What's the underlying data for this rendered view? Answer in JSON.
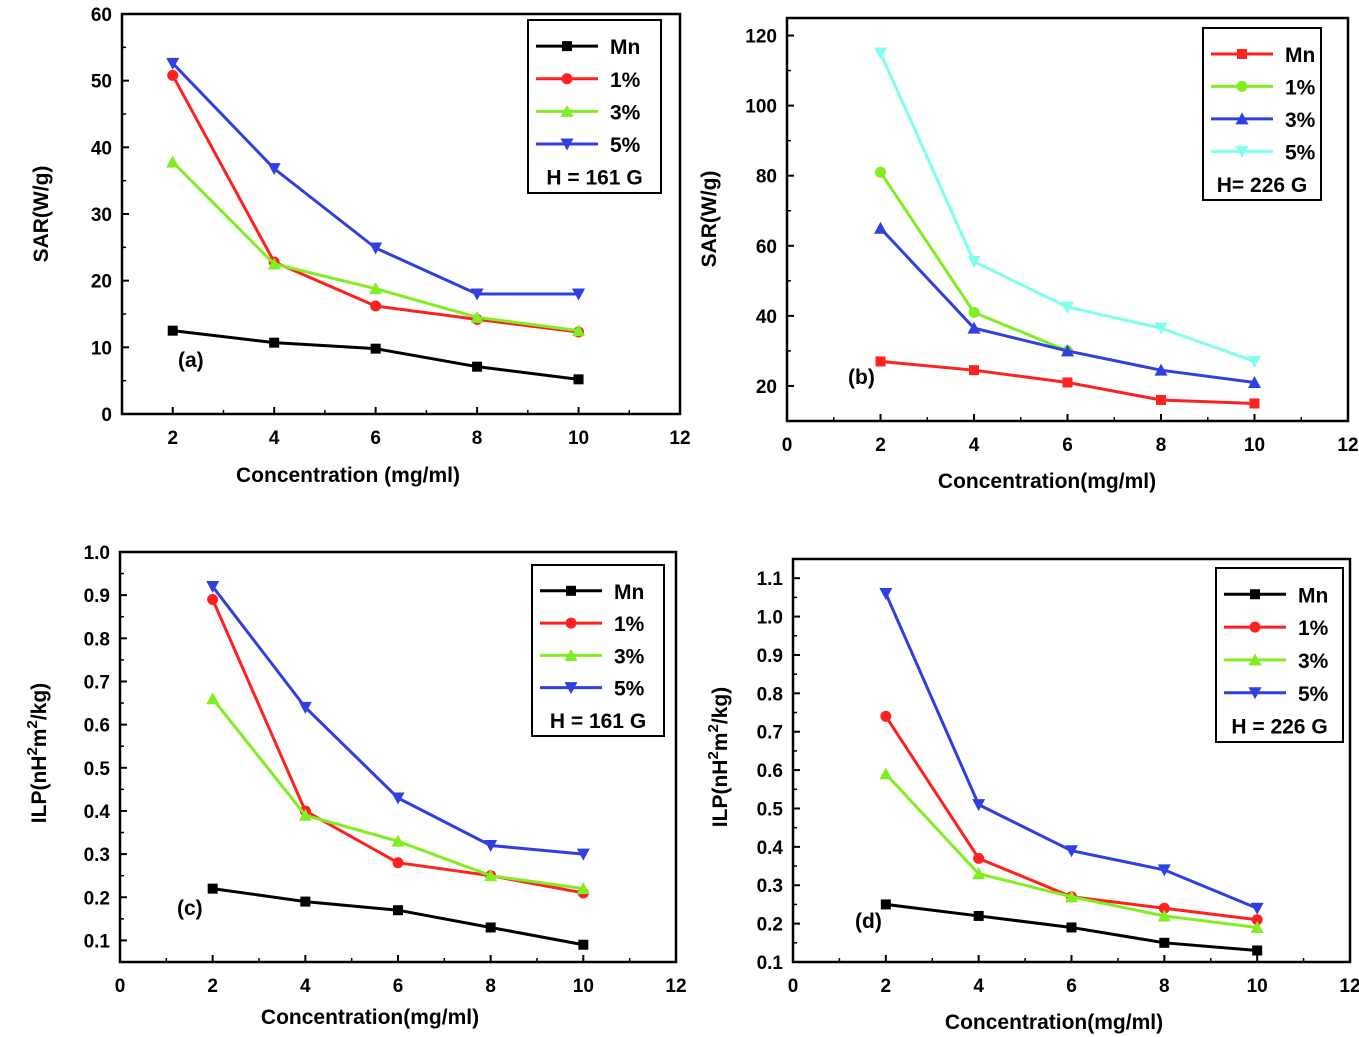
{
  "chart_data": [
    {
      "type": "line",
      "panel_label": "(a)",
      "xlabel": "Concentration (mg/ml)",
      "ylabel": "SAR(W/g)",
      "ylabel_sup": [],
      "xlim": [
        1,
        12
      ],
      "ylim": [
        0,
        60
      ],
      "xticks": [
        "2",
        "4",
        "6",
        "8",
        "10",
        "12"
      ],
      "yticks": [
        "0",
        "10",
        "20",
        "30",
        "40",
        "50",
        "60"
      ],
      "legend_position": "top-right",
      "legend_note": "H = 161 G",
      "x": [
        2,
        4,
        6,
        8,
        10
      ],
      "series": [
        {
          "name": "Mn",
          "color": "#000000",
          "marker": "square",
          "values": [
            12.5,
            10.7,
            9.8,
            7.1,
            5.2
          ]
        },
        {
          "name": "1%",
          "color": "#ff2020",
          "marker": "circle",
          "values": [
            50.8,
            22.8,
            16.2,
            14.2,
            12.3
          ]
        },
        {
          "name": "3%",
          "color": "#80ee20",
          "marker": "triangle-up",
          "values": [
            37.8,
            22.5,
            18.8,
            14.5,
            12.5
          ]
        },
        {
          "name": "5%",
          "color": "#3040e0",
          "marker": "triangle-down",
          "values": [
            52.6,
            36.8,
            24.9,
            18.0,
            18.0
          ]
        }
      ]
    },
    {
      "type": "line",
      "panel_label": "(b)",
      "xlabel": "Concentration(mg/ml)",
      "ylabel": "SAR(W/g)",
      "ylabel_sup": [],
      "xlim": [
        0,
        12
      ],
      "ylim": [
        10,
        125
      ],
      "xticks": [
        "0",
        "2",
        "4",
        "6",
        "8",
        "10",
        "12"
      ],
      "yticks": [
        "20",
        "40",
        "60",
        "80",
        "100",
        "120"
      ],
      "legend_position": "top-right",
      "legend_note": "H= 226 G",
      "x": [
        2,
        4,
        6,
        8,
        10
      ],
      "series": [
        {
          "name": "Mn",
          "color": "#ff2020",
          "marker": "square",
          "values": [
            27.0,
            24.5,
            21.0,
            16.0,
            15.0
          ]
        },
        {
          "name": "1%",
          "color": "#80ee20",
          "marker": "circle",
          "values": [
            81.0,
            41.0,
            30.0,
            null,
            null
          ]
        },
        {
          "name": "3%",
          "color": "#3040e0",
          "marker": "triangle-up",
          "values": [
            65.0,
            36.5,
            30.0,
            24.5,
            21.0
          ]
        },
        {
          "name": "5%",
          "color": "#80ffee",
          "marker": "triangle-down",
          "values": [
            115.0,
            55.5,
            42.5,
            36.5,
            27.0
          ]
        }
      ]
    },
    {
      "type": "line",
      "panel_label": "(c)",
      "xlabel": "Concentration(mg/ml)",
      "ylabel": "ILP(nH2m2/kg)",
      "ylabel_sup": [
        "ILP(nH",
        "2",
        "m",
        "2",
        "/kg)"
      ],
      "xlim": [
        0,
        12
      ],
      "ylim": [
        0.05,
        1.0
      ],
      "xticks": [
        "0",
        "2",
        "4",
        "6",
        "8",
        "10",
        "12"
      ],
      "yticks": [
        "0.1",
        "0.2",
        "0.3",
        "0.4",
        "0.5",
        "0.6",
        "0.7",
        "0.8",
        "0.9",
        "1.0"
      ],
      "legend_position": "top-right",
      "legend_note": "H = 161 G",
      "x": [
        2,
        4,
        6,
        8,
        10
      ],
      "series": [
        {
          "name": "Mn",
          "color": "#000000",
          "marker": "square",
          "values": [
            0.22,
            0.19,
            0.17,
            0.13,
            0.09
          ]
        },
        {
          "name": "1%",
          "color": "#ff2020",
          "marker": "circle",
          "values": [
            0.89,
            0.4,
            0.28,
            0.25,
            0.21
          ]
        },
        {
          "name": "3%",
          "color": "#80ee20",
          "marker": "triangle-up",
          "values": [
            0.66,
            0.39,
            0.33,
            0.25,
            0.22
          ]
        },
        {
          "name": "5%",
          "color": "#3040e0",
          "marker": "triangle-down",
          "values": [
            0.92,
            0.64,
            0.43,
            0.32,
            0.3
          ]
        }
      ]
    },
    {
      "type": "line",
      "panel_label": "(d)",
      "xlabel": "Concentration(mg/ml)",
      "ylabel": "ILP(nH2m2/kg)",
      "ylabel_sup": [
        "ILP(nH",
        "2",
        "m",
        "2",
        "/kg)"
      ],
      "xlim": [
        0,
        12
      ],
      "ylim": [
        0.1,
        1.15
      ],
      "xticks": [
        "0",
        "2",
        "4",
        "6",
        "8",
        "10",
        "12"
      ],
      "yticks": [
        "0.1",
        "0.2",
        "0.3",
        "0.4",
        "0.5",
        "0.6",
        "0.7",
        "0.8",
        "0.9",
        "1.0",
        "1.1"
      ],
      "legend_position": "top-right",
      "legend_note": "H = 226 G",
      "x": [
        2,
        4,
        6,
        8,
        10
      ],
      "series": [
        {
          "name": "Mn",
          "color": "#000000",
          "marker": "square",
          "values": [
            0.25,
            0.22,
            0.19,
            0.15,
            0.13
          ]
        },
        {
          "name": "1%",
          "color": "#ff2020",
          "marker": "circle",
          "values": [
            0.74,
            0.37,
            0.27,
            0.24,
            0.21
          ]
        },
        {
          "name": "3%",
          "color": "#80ee20",
          "marker": "triangle-up",
          "values": [
            0.59,
            0.33,
            0.27,
            0.22,
            0.19
          ]
        },
        {
          "name": "5%",
          "color": "#3040e0",
          "marker": "triangle-down",
          "values": [
            1.06,
            0.51,
            0.39,
            0.34,
            0.24
          ]
        }
      ]
    }
  ]
}
